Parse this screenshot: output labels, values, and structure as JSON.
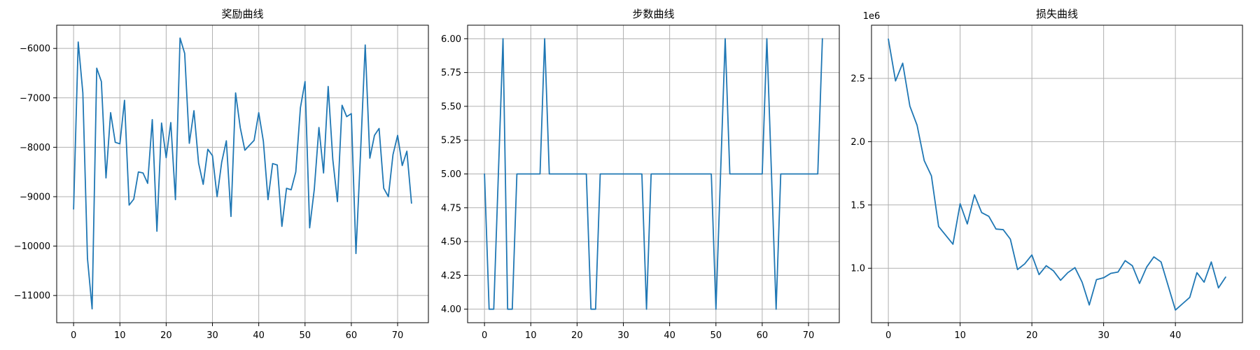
{
  "colors": {
    "line": "#1f77b4",
    "grid": "#b0b0b0"
  },
  "chart_data": [
    {
      "type": "line",
      "title": "奖励曲线",
      "xlabel": "",
      "ylabel": "",
      "grid": true,
      "xlim": [
        -3.65,
        76.65
      ],
      "ylim": [
        -11550,
        -5530
      ],
      "xticks": [
        0,
        10,
        20,
        30,
        40,
        50,
        60,
        70
      ],
      "yticks": [
        -11000,
        -10000,
        -9000,
        -8000,
        -7000,
        -6000
      ],
      "ytick_labels": [
        "−11000",
        "−10000",
        "−9000",
        "−8000",
        "−7000",
        "−6000"
      ],
      "offset_text": "",
      "series": [
        {
          "values": [
            -9250,
            -5870,
            -6900,
            -10250,
            -11270,
            -6400,
            -6670,
            -8620,
            -7300,
            -7900,
            -7930,
            -7050,
            -9170,
            -9050,
            -8500,
            -8520,
            -8730,
            -7440,
            -9700,
            -7510,
            -8210,
            -7500,
            -9060,
            -5790,
            -6100,
            -7920,
            -7260,
            -8320,
            -8750,
            -8040,
            -8170,
            -9000,
            -8300,
            -7870,
            -9400,
            -6900,
            -7600,
            -8060,
            -7960,
            -7860,
            -7300,
            -7880,
            -9060,
            -8330,
            -8360,
            -9600,
            -8830,
            -8860,
            -8500,
            -7200,
            -6670,
            -9630,
            -8850,
            -7600,
            -8520,
            -6770,
            -8250,
            -9100,
            -7150,
            -7380,
            -7320,
            -10150,
            -8100,
            -5930,
            -8220,
            -7760,
            -7620,
            -8830,
            -9000,
            -8150,
            -7760,
            -8370,
            -8080,
            -9130
          ]
        }
      ]
    },
    {
      "type": "line",
      "title": "步数曲线",
      "xlabel": "",
      "ylabel": "",
      "grid": true,
      "xlim": [
        -3.65,
        76.65
      ],
      "ylim": [
        3.9,
        6.1
      ],
      "xticks": [
        0,
        10,
        20,
        30,
        40,
        50,
        60,
        70
      ],
      "yticks": [
        4.0,
        4.25,
        4.5,
        4.75,
        5.0,
        5.25,
        5.5,
        5.75,
        6.0
      ],
      "ytick_labels": [
        "4.00",
        "4.25",
        "4.50",
        "4.75",
        "5.00",
        "5.25",
        "5.50",
        "5.75",
        "6.00"
      ],
      "offset_text": "",
      "series": [
        {
          "values": [
            5,
            4,
            4,
            5,
            6,
            4,
            4,
            5,
            5,
            5,
            5,
            5,
            5,
            6,
            5,
            5,
            5,
            5,
            5,
            5,
            5,
            5,
            5,
            4,
            4,
            5,
            5,
            5,
            5,
            5,
            5,
            5,
            5,
            5,
            5,
            4,
            5,
            5,
            5,
            5,
            5,
            5,
            5,
            5,
            5,
            5,
            5,
            5,
            5,
            5,
            4,
            5,
            6,
            5,
            5,
            5,
            5,
            5,
            5,
            5,
            5,
            6,
            5,
            4,
            5,
            5,
            5,
            5,
            5,
            5,
            5,
            5,
            5,
            6
          ]
        }
      ]
    },
    {
      "type": "line",
      "title": "损失曲线",
      "xlabel": "",
      "ylabel": "",
      "grid": true,
      "xlim": [
        -2.35,
        49.35
      ],
      "ylim": [
        570000,
        2920000
      ],
      "xticks": [
        0,
        10,
        20,
        30,
        40
      ],
      "yticks": [
        1000000,
        1500000,
        2000000,
        2500000
      ],
      "ytick_labels": [
        "1.0",
        "1.5",
        "2.0",
        "2.5"
      ],
      "offset_text": "1e6",
      "series": [
        {
          "values": [
            2810000,
            2480000,
            2620000,
            2280000,
            2130000,
            1850000,
            1730000,
            1330000,
            1260000,
            1190000,
            1510000,
            1350000,
            1580000,
            1440000,
            1410000,
            1310000,
            1305000,
            1230000,
            990000,
            1035000,
            1105000,
            950000,
            1020000,
            980000,
            905000,
            965000,
            1005000,
            890000,
            710000,
            910000,
            925000,
            960000,
            970000,
            1060000,
            1020000,
            880000,
            1010000,
            1090000,
            1050000,
            860000,
            670000,
            720000,
            770000,
            965000,
            890000,
            1050000,
            845000,
            930000
          ]
        }
      ]
    }
  ]
}
